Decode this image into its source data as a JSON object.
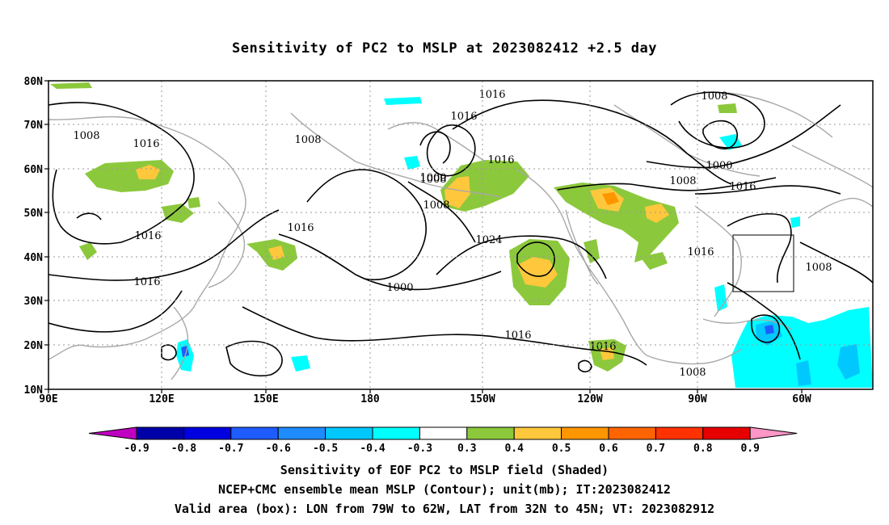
{
  "title": "Sensitivity of PC2 to MSLP at 2023082412 +2.5 day",
  "lat_labels": [
    "80N",
    "70N",
    "60N",
    "50N",
    "40N",
    "30N",
    "20N",
    "10N"
  ],
  "lon_labels": [
    "90E",
    "120E",
    "150E",
    "180",
    "150W",
    "120W",
    "90W",
    "60W"
  ],
  "contour_labels": [
    "1016",
    "1008",
    "1008",
    "1016",
    "1016",
    "1008",
    "1016",
    "1000",
    "1008",
    "1000",
    "1016",
    "1008",
    "1024",
    "1016",
    "1016",
    "1016",
    "1000",
    "1008",
    "1016",
    "1016",
    "1016",
    "1008",
    "1008"
  ],
  "colorbar": {
    "labels": [
      "-0.9",
      "-0.8",
      "-0.7",
      "-0.6",
      "-0.5",
      "-0.4",
      "-0.3",
      "0.3",
      "0.4",
      "0.5",
      "0.6",
      "0.7",
      "0.8",
      "0.9"
    ],
    "colors": [
      "#c000c0",
      "#0000a8",
      "#0000e0",
      "#1e5cff",
      "#1e8cff",
      "#00c8ff",
      "#00ffff",
      "#ffffff",
      "#8cc83c",
      "#ffc83c",
      "#ff9600",
      "#ff6400",
      "#ff3200",
      "#e60000",
      "#ff96c8"
    ]
  },
  "captions": [
    "Sensitivity of EOF PC2 to MSLP field (Shaded)",
    "NCEP+CMC ensemble mean MSLP (Contour); unit(mb); IT:2023082412",
    "Valid area (box): LON from 79W to 62W, LAT from 32N to 45N; VT: 2023082912"
  ]
}
